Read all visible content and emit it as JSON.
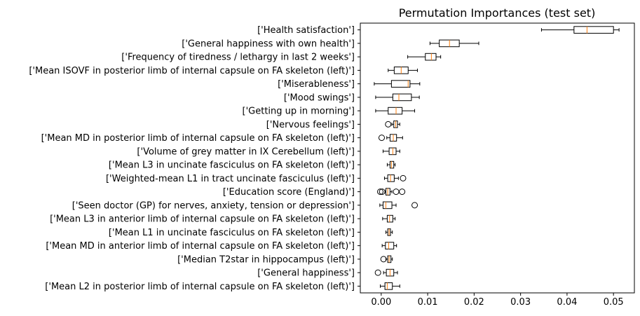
{
  "chart_data": {
    "type": "boxplot",
    "orientation": "horizontal",
    "title": "Permutation Importances (test set)",
    "xlabel": "",
    "ylabel": "",
    "xlim": [
      -0.0045,
      0.0545
    ],
    "xticks": [
      0.0,
      0.01,
      0.02,
      0.03,
      0.04,
      0.05
    ],
    "xtick_labels": [
      "0.00",
      "0.01",
      "0.02",
      "0.03",
      "0.04",
      "0.05"
    ],
    "grid": false,
    "legend": "none",
    "colors": {
      "box": "#000000",
      "median": "#ff7f0e",
      "flier": "#000000"
    },
    "categories": [
      "['Health satisfaction']",
      "['General happiness with own health']",
      "['Frequency of tiredness / lethargy in last 2 weeks']",
      "['Mean ISOVF in posterior limb of internal capsule on FA skeleton (left)']",
      "['Miserableness']",
      "['Mood swings']",
      "['Getting up in morning']",
      "['Nervous feelings']",
      "['Mean MD in posterior limb of internal capsule on FA skeleton (left)']",
      "['Volume of grey matter in IX Cerebellum (left)']",
      "['Mean L3 in uncinate fasciculus on FA skeleton (left)']",
      "['Weighted-mean L1 in tract uncinate fasciculus (left)']",
      "['Education score (England)']",
      "['Seen doctor (GP) for nerves, anxiety, tension or depression']",
      "['Mean L3 in anterior limb of internal capsule on FA skeleton (left)']",
      "['Mean L1 in uncinate fasciculus on FA skeleton (left)']",
      "['Mean MD in anterior limb of internal capsule on FA skeleton (left)']",
      "['Median T2star in hippocampus (left)']",
      "['General happiness']",
      "['Mean L2 in posterior limb of internal capsule on FA skeleton (left)']"
    ],
    "boxes": [
      {
        "whisker_low": 0.0345,
        "q1": 0.0415,
        "median": 0.0443,
        "q3": 0.05,
        "whisker_high": 0.0512,
        "fliers": []
      },
      {
        "whisker_low": 0.0105,
        "q1": 0.0125,
        "median": 0.0147,
        "q3": 0.0168,
        "whisker_high": 0.021,
        "fliers": []
      },
      {
        "whisker_low": 0.0057,
        "q1": 0.0095,
        "median": 0.0108,
        "q3": 0.0118,
        "whisker_high": 0.0128,
        "fliers": []
      },
      {
        "whisker_low": 0.0015,
        "q1": 0.0028,
        "median": 0.0043,
        "q3": 0.0058,
        "whisker_high": 0.0078,
        "fliers": []
      },
      {
        "whisker_low": -0.0015,
        "q1": 0.0022,
        "median": 0.0058,
        "q3": 0.0062,
        "whisker_high": 0.0083,
        "fliers": []
      },
      {
        "whisker_low": -0.0012,
        "q1": 0.0025,
        "median": 0.0038,
        "q3": 0.0065,
        "whisker_high": 0.0082,
        "fliers": []
      },
      {
        "whisker_low": -0.0012,
        "q1": 0.0015,
        "median": 0.0032,
        "q3": 0.0045,
        "whisker_high": 0.0072,
        "fliers": []
      },
      {
        "whisker_low": 0.0023,
        "q1": 0.0027,
        "median": 0.0031,
        "q3": 0.0035,
        "whisker_high": 0.004,
        "fliers": [
          0.0015
        ]
      },
      {
        "whisker_low": 0.0012,
        "q1": 0.0019,
        "median": 0.0026,
        "q3": 0.0033,
        "whisker_high": 0.0046,
        "fliers": [
          0.0001
        ]
      },
      {
        "whisker_low": 0.0004,
        "q1": 0.0017,
        "median": 0.0025,
        "q3": 0.0032,
        "whisker_high": 0.004,
        "fliers": []
      },
      {
        "whisker_low": 0.0013,
        "q1": 0.0019,
        "median": 0.0022,
        "q3": 0.0027,
        "whisker_high": 0.003,
        "fliers": []
      },
      {
        "whisker_low": 0.0007,
        "q1": 0.0014,
        "median": 0.002,
        "q3": 0.0028,
        "whisker_high": 0.0037,
        "fliers": [
          0.0047
        ]
      },
      {
        "whisker_low": 0.0008,
        "q1": 0.001,
        "median": 0.0014,
        "q3": 0.0019,
        "whisker_high": 0.0023,
        "fliers": [
          -0.0002,
          0.0002,
          0.0032,
          0.0045
        ]
      },
      {
        "whisker_low": -0.0003,
        "q1": 0.0004,
        "median": 0.001,
        "q3": 0.0023,
        "whisker_high": 0.0032,
        "fliers": [
          0.0072
        ]
      },
      {
        "whisker_low": 0.0003,
        "q1": 0.0013,
        "median": 0.0018,
        "q3": 0.0025,
        "whisker_high": 0.003,
        "fliers": []
      },
      {
        "whisker_low": 0.001,
        "q1": 0.0014,
        "median": 0.0017,
        "q3": 0.002,
        "whisker_high": 0.0024,
        "fliers": []
      },
      {
        "whisker_low": 0.0002,
        "q1": 0.0009,
        "median": 0.0016,
        "q3": 0.0027,
        "whisker_high": 0.0033,
        "fliers": []
      },
      {
        "whisker_low": 0.001,
        "q1": 0.0014,
        "median": 0.0017,
        "q3": 0.0021,
        "whisker_high": 0.0024,
        "fliers": [
          0.0005
        ]
      },
      {
        "whisker_low": 0.0005,
        "q1": 0.0011,
        "median": 0.0019,
        "q3": 0.0027,
        "whisker_high": 0.0035,
        "fliers": [
          -0.0007
        ]
      },
      {
        "whisker_low": -0.0002,
        "q1": 0.0008,
        "median": 0.0013,
        "q3": 0.0024,
        "whisker_high": 0.004,
        "fliers": []
      }
    ]
  }
}
